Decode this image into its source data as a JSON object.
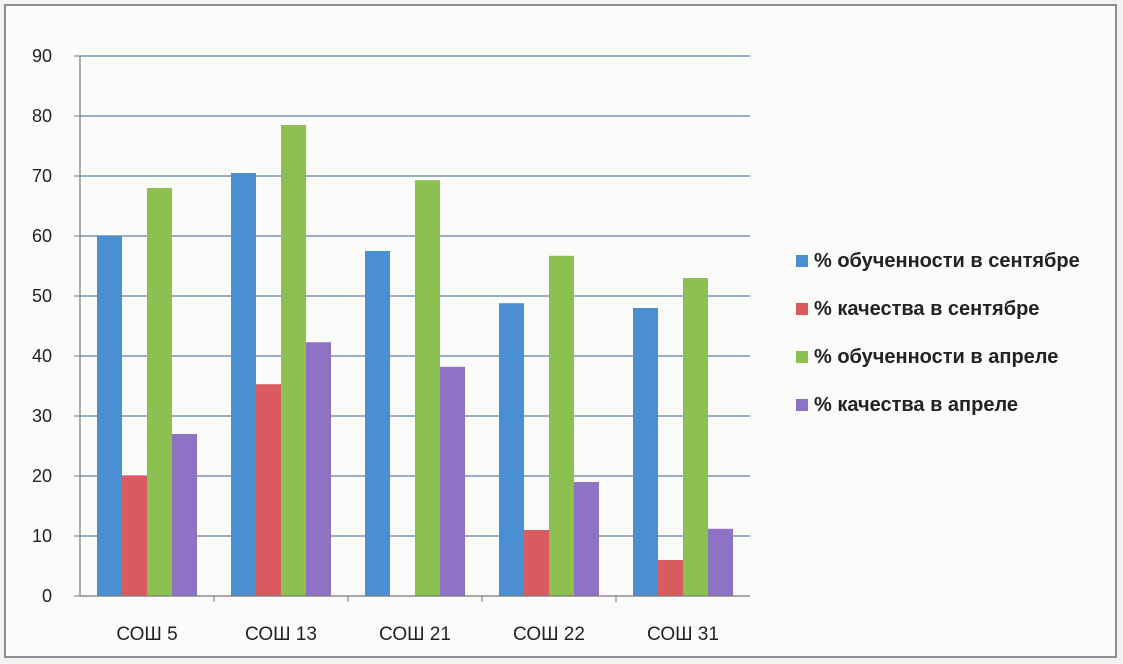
{
  "chart_data": {
    "type": "bar",
    "categories": [
      "СОШ 5",
      "СОШ 13",
      "СОШ 21",
      "СОШ 22",
      "СОШ 31"
    ],
    "series": [
      {
        "name": "% обученности в сентябре",
        "color": "#4a8fd1",
        "values": [
          60,
          70.5,
          57.5,
          48.8,
          48
        ]
      },
      {
        "name": "% качества в сентябре",
        "color": "#d95a5f",
        "values": [
          20,
          35.3,
          0,
          11,
          6
        ]
      },
      {
        "name": "% обученности в апреле",
        "color": "#8cc152",
        "values": [
          68,
          78.5,
          69.3,
          56.7,
          53
        ]
      },
      {
        "name": "% качества в апреле",
        "color": "#8e72c4",
        "values": [
          27,
          42.3,
          38.2,
          19,
          11.2
        ]
      }
    ],
    "yticks": [
      "0",
      "10",
      "20",
      "30",
      "40",
      "50",
      "60",
      "70",
      "80",
      "90"
    ],
    "ylim": [
      0,
      90
    ],
    "grid": true,
    "legend_position": "right"
  }
}
